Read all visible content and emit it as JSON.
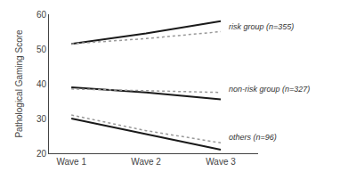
{
  "chart_data": {
    "type": "line",
    "x": [
      1,
      2,
      3
    ],
    "xlim": [
      0.7,
      3.5
    ],
    "xticks": [
      {
        "value": 1,
        "label": "Wave 1"
      },
      {
        "value": 2,
        "label": "Wave 2"
      },
      {
        "value": 3,
        "label": "Wave 3"
      }
    ],
    "ylim": [
      20,
      60
    ],
    "yticks": [
      20,
      30,
      40,
      50,
      60
    ],
    "y_label": "Pathological Gaming Score",
    "grid": false,
    "series": [
      {
        "color": "#1a1a1a",
        "line_style": "solid",
        "values": [
          51.5,
          54.5,
          58.0
        ]
      },
      {
        "color": "#999999",
        "line_style": "dotted",
        "values": [
          51.5,
          53.0,
          55.0
        ]
      },
      {
        "color": "#1a1a1a",
        "line_style": "solid",
        "values": [
          39.0,
          37.5,
          35.5
        ]
      },
      {
        "color": "#999999",
        "line_style": "dotted",
        "values": [
          38.5,
          38.0,
          37.5
        ]
      },
      {
        "color": "#1a1a1a",
        "line_style": "solid",
        "values": [
          30.0,
          25.5,
          21.0
        ]
      },
      {
        "color": "#999999",
        "line_style": "dotted",
        "values": [
          31.0,
          26.5,
          23.0
        ]
      }
    ],
    "annotations": [
      {
        "text": "risk group (n=355)",
        "x": 3.08,
        "y": 56.5
      },
      {
        "text": "non-risk group (n=327)",
        "x": 3.08,
        "y": 38.5
      },
      {
        "text": "others (n=96)",
        "x": 3.08,
        "y": 24.5
      }
    ]
  }
}
